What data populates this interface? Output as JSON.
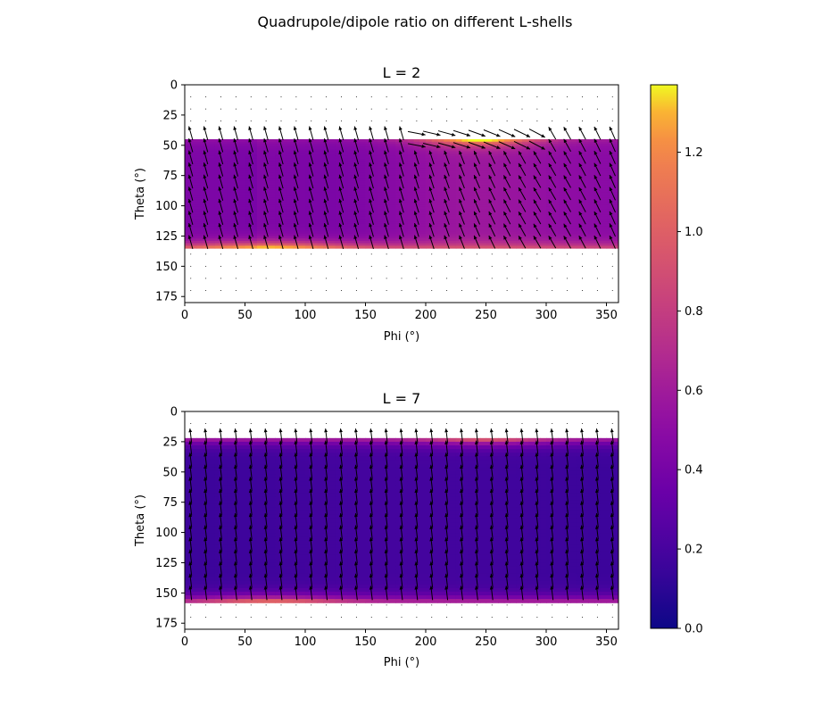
{
  "chart_data": {
    "type": "heatmap",
    "suptitle": "Quadrupole/dipole ratio on different L-shells",
    "colormap": "plasma",
    "colorbar": {
      "range": [
        0,
        1.37
      ],
      "ticks": [
        0.0,
        0.2,
        0.4,
        0.6,
        0.8,
        1.0,
        1.2
      ],
      "tick_labels": [
        "0.0",
        "0.2",
        "0.4",
        "0.6",
        "0.8",
        "1.0",
        "1.2"
      ]
    },
    "panels": [
      {
        "title": "L = 2",
        "L": 2,
        "xlabel": "Phi (°)",
        "ylabel": "Theta (°)",
        "xlim": [
          0,
          360
        ],
        "ylim": [
          180,
          0
        ],
        "xticks": [
          0,
          50,
          100,
          150,
          200,
          250,
          300,
          350
        ],
        "yticks": [
          0,
          25,
          50,
          75,
          100,
          125,
          150,
          175
        ],
        "theta_band": [
          45,
          135
        ],
        "vector_field": "quiver",
        "notes_values": {
          "edge_max": 1.35,
          "interior_typical": 0.55,
          "hotspot_phi": 240
        }
      },
      {
        "title": "L = 7",
        "L": 7,
        "xlabel": "Phi (°)",
        "ylabel": "Theta (°)",
        "xlim": [
          0,
          360
        ],
        "ylim": [
          180,
          0
        ],
        "xticks": [
          0,
          50,
          100,
          150,
          200,
          250,
          300,
          350
        ],
        "yticks": [
          0,
          25,
          50,
          75,
          100,
          125,
          150,
          175
        ],
        "theta_band": [
          22,
          158
        ],
        "vector_field": "quiver",
        "notes_values": {
          "edge_max": 1.2,
          "interior_typical": 0.2
        }
      }
    ]
  }
}
